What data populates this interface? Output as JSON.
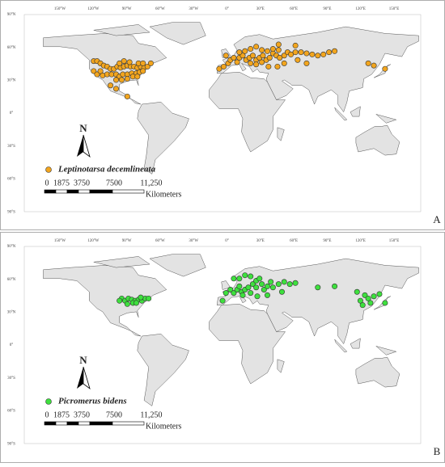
{
  "lon_labels": [
    "150°W",
    "120°W",
    "90°W",
    "60°W",
    "30°W",
    "0°",
    "30°E",
    "60°E",
    "90°E",
    "120°E",
    "150°E"
  ],
  "lat_labels": [
    "90°N",
    "60°N",
    "30°N",
    "0°",
    "30°S",
    "60°S",
    "90°S"
  ],
  "north": "N",
  "scale": {
    "labels": [
      "0",
      "1875",
      "3750",
      "7500",
      "11,250"
    ],
    "unit": "Kilometers"
  },
  "panels": [
    {
      "letter": "A",
      "legend": "Leptinotarsa decemlineata",
      "color": "#f2a51e",
      "points": {
        "lon": [
          -120,
          -117,
          -114,
          -111,
          -108,
          -105,
          -102,
          -99,
          -96,
          -93,
          -90,
          -87,
          -84,
          -81,
          -78,
          -75,
          -72,
          -69,
          -120,
          -117,
          -112,
          -108,
          -104,
          -100,
          -97,
          -94,
          -90,
          -86,
          -82,
          -79,
          -76,
          -95,
          -90,
          -85,
          -81,
          -100,
          -105,
          -100,
          -97,
          -93,
          -88,
          -80,
          -76,
          -114,
          -90,
          -8,
          -4,
          0,
          2,
          5,
          8,
          10,
          13,
          16,
          19,
          22,
          25,
          28,
          31,
          34,
          37,
          40,
          43,
          46,
          50,
          53,
          56,
          60,
          65,
          70,
          75,
          80,
          85,
          90,
          95,
          20,
          25,
          30,
          15,
          20,
          25,
          30,
          35,
          40,
          45,
          -2,
          10,
          36,
          44,
          50,
          62,
          70,
          125,
          130,
          140,
          60,
          45
        ],
        "lat": [
          47,
          47,
          45,
          43,
          42,
          40,
          40,
          42,
          41,
          42,
          43,
          42,
          42,
          41,
          42,
          41,
          42,
          45,
          38,
          35,
          34,
          35,
          35,
          35,
          33,
          35,
          35,
          36,
          36,
          37,
          38,
          30,
          31,
          33,
          33,
          30,
          25,
          22,
          45,
          47,
          46,
          45,
          45,
          38,
          15,
          40,
          42,
          45,
          48,
          50,
          46,
          50,
          52,
          48,
          50,
          52,
          48,
          50,
          52,
          48,
          50,
          54,
          52,
          50,
          52,
          55,
          53,
          55,
          55,
          54,
          53,
          52,
          53,
          55,
          56,
          45,
          44,
          46,
          56,
          58,
          60,
          57,
          56,
          58,
          57,
          52,
          55,
          42,
          42,
          45,
          48,
          45,
          45,
          43,
          40,
          61,
          62
        ]
      }
    },
    {
      "letter": "B",
      "legend": "Picromerus bidens",
      "color": "#3ee03e",
      "points": {
        "lon": [
          -95,
          -92,
          -89,
          -86,
          -83,
          -80,
          -77,
          -74,
          -90,
          -85,
          -82,
          -97,
          -78,
          -71,
          -2,
          2,
          5,
          8,
          10,
          12,
          15,
          18,
          20,
          22,
          25,
          28,
          25,
          30,
          32,
          35,
          38,
          40,
          45,
          50,
          55,
          5,
          10,
          15,
          20,
          35,
          26,
          -5,
          60,
          80,
          95,
          115,
          118,
          122,
          125,
          127,
          120,
          130,
          135,
          140,
          48,
          13
        ],
        "lat": [
          42,
          40,
          42,
          41,
          40,
          41,
          40,
          42,
          37,
          38,
          38,
          40,
          43,
          42,
          47,
          50,
          47,
          50,
          53,
          48,
          50,
          52,
          47,
          55,
          58,
          60,
          52,
          55,
          50,
          53,
          57,
          52,
          55,
          57,
          55,
          60,
          60,
          63,
          62,
          45,
          44,
          40,
          56,
          52,
          53,
          48,
          40,
          45,
          42,
          38,
          36,
          44,
          46,
          38,
          48,
          45
        ]
      }
    }
  ]
}
